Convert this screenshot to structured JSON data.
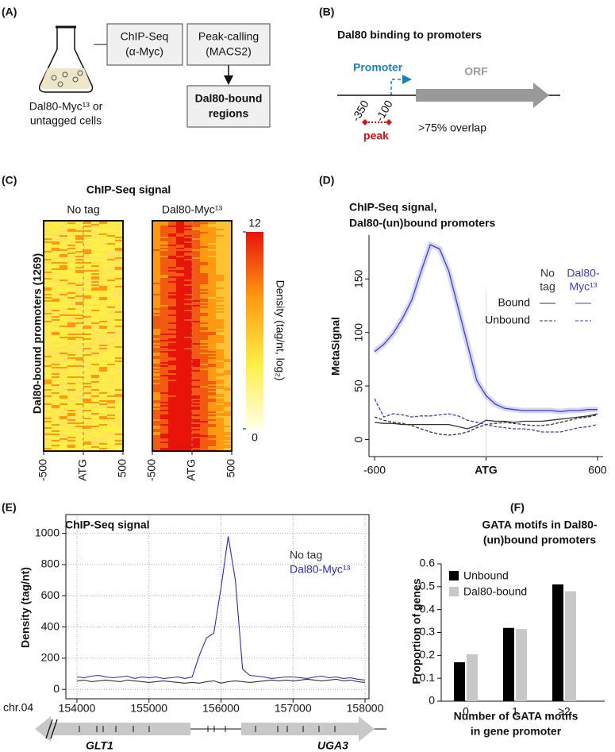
{
  "panel_labels": [
    "(A)",
    "(B)",
    "(C)",
    "(D)",
    "(E)",
    "(F)"
  ],
  "diagram_a": {
    "cells": [
      "Dal80-Myc¹³ or",
      "untagged cells"
    ],
    "chip_seq": [
      "ChIP-Seq",
      "(α-Myc)"
    ],
    "peak_calling": [
      "Peak-calling",
      "(MACS2)"
    ],
    "result": [
      "Dal80-bound",
      "regions"
    ]
  },
  "diagram_b": {
    "title": "Dal80 binding to promoters",
    "promoter": "Promoter",
    "orf": "ORF",
    "positions": [
      "-350",
      "-100"
    ],
    "peak": "peak",
    "overlap": ">75% overlap"
  },
  "chart_data": [
    {
      "type": "heatmap",
      "title": "ChIP-Seq signal",
      "ylabel": "Dal80-bound promoters (1269)",
      "panels": [
        "No tag",
        "Dal80-Myc¹³"
      ],
      "xlim": [
        -500,
        500
      ],
      "xticks": [
        -500,
        {
          "value": 0,
          "label": "ATG"
        },
        500
      ],
      "colorbar": {
        "label": "Density (tag/nt, log₂)",
        "lim": [
          0,
          12
        ],
        "ticks": [
          0,
          12
        ],
        "colors": [
          "#ffffe6",
          "#ffee44",
          "#ff9a10",
          "#e8140a"
        ]
      }
    },
    {
      "type": "line",
      "title": [
        "ChIP-Seq signal,",
        "Dal80-(un)bound promoters"
      ],
      "ylabel": "MetaSignal",
      "x": [
        -600,
        -550,
        -500,
        -450,
        -400,
        -350,
        -300,
        -250,
        -200,
        -150,
        -100,
        -50,
        0,
        50,
        100,
        150,
        200,
        250,
        300,
        350,
        400,
        450,
        500,
        550,
        600
      ],
      "xlim": [
        -630,
        630
      ],
      "xticks": [
        -600,
        {
          "value": 0,
          "label": "ATG"
        },
        600
      ],
      "ylim": [
        -16,
        191
      ],
      "yticks": [
        0,
        50,
        100,
        150
      ],
      "legend": {
        "columns": [
          [
            "No",
            "tag"
          ],
          [
            "Dal80-",
            "Myc¹³"
          ]
        ],
        "rows": [
          "Bound",
          "Unbound"
        ]
      },
      "series": [
        {
          "color": "#333333",
          "dash": false,
          "values": [
            16,
            15,
            15,
            14,
            14,
            14,
            14,
            14,
            14,
            12,
            10,
            13,
            18,
            17,
            17,
            16,
            17,
            17,
            17,
            18,
            19,
            20,
            21,
            22,
            24
          ]
        },
        {
          "color": "#3b3bd0",
          "dash": false,
          "values": [
            82,
            89,
            99,
            113,
            130,
            157,
            182,
            178,
            157,
            123,
            89,
            55,
            41,
            33,
            29,
            28,
            27,
            27,
            27,
            27,
            26,
            27,
            27,
            28,
            28
          ]
        },
        {
          "color": "#333333",
          "dash": true,
          "values": [
            21,
            18,
            16,
            15,
            13,
            10,
            7,
            5,
            4,
            5,
            7,
            11,
            14,
            15,
            16,
            15,
            14,
            13,
            13,
            14,
            16,
            18,
            20,
            21,
            23
          ]
        },
        {
          "color": "#3b3bd0",
          "dash": true,
          "values": [
            38,
            21,
            24,
            23,
            21,
            22,
            22,
            23,
            24,
            22,
            18,
            16,
            14,
            12,
            11,
            10,
            10,
            9,
            7,
            7,
            7,
            9,
            11,
            12,
            14
          ]
        }
      ]
    },
    {
      "type": "line",
      "title": "ChIP-Seq signal",
      "ylabel": "Density (tag/nt)",
      "xlabel": "chr.04",
      "x": [
        154000,
        154100,
        154200,
        154300,
        154400,
        154500,
        154600,
        154700,
        154800,
        154900,
        155000,
        155100,
        155200,
        155300,
        155400,
        155500,
        155600,
        155700,
        155800,
        155900,
        156000,
        156100,
        156200,
        156300,
        156400,
        156500,
        156600,
        156700,
        156800,
        156900,
        157000,
        157100,
        157200,
        157300,
        157400,
        157500,
        157600,
        157700,
        157800,
        157900,
        158000
      ],
      "xlim": [
        153846,
        158055
      ],
      "xticks": [
        154000,
        155000,
        156000,
        157000,
        158000
      ],
      "ylim": [
        -60,
        1120
      ],
      "yticks": [
        0,
        200,
        400,
        600,
        800,
        1000
      ],
      "grid": true,
      "series": [
        {
          "name": "No tag",
          "color": "#333333",
          "values": [
            55,
            60,
            50,
            55,
            60,
            55,
            50,
            60,
            55,
            50,
            45,
            50,
            55,
            50,
            45,
            40,
            45,
            40,
            50,
            55,
            40,
            50,
            55,
            50,
            45,
            50,
            55,
            60,
            55,
            60,
            55,
            60,
            65,
            60,
            55,
            60,
            65,
            55,
            60,
            50,
            45
          ]
        },
        {
          "name": "Dal80-Myc¹³",
          "color": "#2a2acf",
          "values": [
            80,
            75,
            85,
            90,
            80,
            75,
            80,
            85,
            70,
            80,
            75,
            80,
            70,
            75,
            80,
            70,
            80,
            220,
            330,
            360,
            650,
            980,
            700,
            130,
            90,
            85,
            80,
            70,
            75,
            80,
            80,
            75,
            70,
            80,
            85,
            75,
            80,
            70,
            75,
            65,
            60
          ]
        }
      ],
      "genes": [
        "GLT1",
        "UGA3"
      ]
    },
    {
      "type": "bar",
      "title": [
        "GATA motifs in Dal80-",
        "(un)bound promoters"
      ],
      "ylabel": "Proportion of genes",
      "xlabel": [
        "Number of GATA motifs",
        "in gene promoter"
      ],
      "categories": [
        "0",
        "1",
        "≥2"
      ],
      "ylim": [
        0,
        0.6
      ],
      "yticks": [
        0,
        0.1,
        0.2,
        0.3,
        0.4,
        0.5,
        0.6
      ],
      "series": [
        {
          "name": "Unbound",
          "color": "#000000",
          "values": [
            0.17,
            0.32,
            0.51
          ]
        },
        {
          "name": "Dal80-bound",
          "color": "#c8c8c8",
          "values": [
            0.205,
            0.315,
            0.48
          ]
        }
      ]
    }
  ]
}
